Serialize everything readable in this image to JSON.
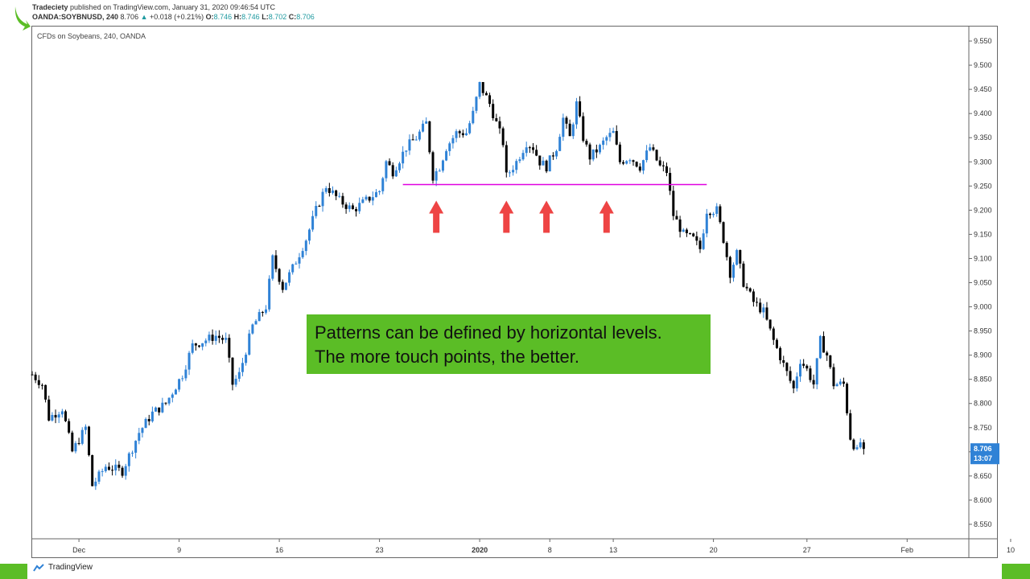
{
  "header": {
    "publisher": "Tradeciety",
    "published_text": "published on TradingView.com, January 31, 2020 09:46:54 UTC",
    "symbol": "OANDA:SOYBNUSD, 240",
    "last": "8.706",
    "change": "+0.018 (+0.21%)",
    "o_label": "O:",
    "o_value": "8.746",
    "h_label": "H:",
    "h_value": "8.746",
    "l_label": "L:",
    "l_value": "8.702",
    "c_label": "C:",
    "c_value": "8.706"
  },
  "chart_subtitle": "CFDs on Soybeans, 240, OANDA",
  "callout": {
    "line1": "Patterns can be defined by horizontal levels.",
    "line2": "The more touch points, the better."
  },
  "footer": {
    "brand": "TradingView"
  },
  "colors": {
    "up": "#2f82d6",
    "down": "#000000",
    "level": "#e000e0",
    "arrow": "#ee4444",
    "callout": "#5bbd26",
    "price_tag": "#2f82d6"
  },
  "chart_data": {
    "type": "candlestick",
    "title": "CFDs on Soybeans, 240, OANDA",
    "ylim": [
      8.52,
      9.58
    ],
    "y_ticks": [
      "9.550",
      "9.500",
      "9.450",
      "9.400",
      "9.350",
      "9.300",
      "9.250",
      "9.200",
      "9.150",
      "9.100",
      "9.050",
      "9.000",
      "8.950",
      "8.900",
      "8.850",
      "8.800",
      "8.750",
      "8.700",
      "8.650",
      "8.600",
      "8.550"
    ],
    "x_ticks": [
      {
        "label": "Dec",
        "bar": 14
      },
      {
        "label": "9",
        "bar": 44
      },
      {
        "label": "16",
        "bar": 74
      },
      {
        "label": "23",
        "bar": 104
      },
      {
        "label": "2020",
        "bar": 134
      },
      {
        "label": "8",
        "bar": 155
      },
      {
        "label": "13",
        "bar": 174
      },
      {
        "label": "20",
        "bar": 204
      },
      {
        "label": "27",
        "bar": 232
      },
      {
        "label": "Feb",
        "bar": 262
      },
      {
        "label": "10",
        "bar": 293
      }
    ],
    "bar_count": 300,
    "horizontal_level": {
      "price": 9.253,
      "from_bar": 111,
      "to_bar": 202
    },
    "touch_arrows_bars": [
      121,
      142,
      154,
      172
    ],
    "last_price_tag": {
      "price": "8.706",
      "time": "13:07"
    },
    "waypoints": [
      [
        0,
        8.86
      ],
      [
        3,
        8.84
      ],
      [
        5,
        8.77
      ],
      [
        9,
        8.79
      ],
      [
        12,
        8.7
      ],
      [
        16,
        8.75
      ],
      [
        18,
        8.63
      ],
      [
        22,
        8.67
      ],
      [
        27,
        8.66
      ],
      [
        32,
        8.74
      ],
      [
        36,
        8.78
      ],
      [
        40,
        8.8
      ],
      [
        45,
        8.86
      ],
      [
        48,
        8.92
      ],
      [
        55,
        8.94
      ],
      [
        58,
        8.93
      ],
      [
        60,
        8.84
      ],
      [
        62,
        8.86
      ],
      [
        66,
        8.96
      ],
      [
        70,
        9.0
      ],
      [
        72,
        9.1
      ],
      [
        75,
        9.04
      ],
      [
        78,
        9.08
      ],
      [
        82,
        9.14
      ],
      [
        85,
        9.2
      ],
      [
        88,
        9.25
      ],
      [
        92,
        9.22
      ],
      [
        96,
        9.2
      ],
      [
        100,
        9.22
      ],
      [
        104,
        9.24
      ],
      [
        106,
        9.3
      ],
      [
        108,
        9.28
      ],
      [
        112,
        9.33
      ],
      [
        115,
        9.35
      ],
      [
        118,
        9.38
      ],
      [
        120,
        9.27
      ],
      [
        122,
        9.29
      ],
      [
        124,
        9.33
      ],
      [
        127,
        9.36
      ],
      [
        130,
        9.36
      ],
      [
        132,
        9.4
      ],
      [
        134,
        9.46
      ],
      [
        137,
        9.42
      ],
      [
        139,
        9.38
      ],
      [
        141,
        9.34
      ],
      [
        142,
        9.27
      ],
      [
        145,
        9.3
      ],
      [
        148,
        9.34
      ],
      [
        150,
        9.33
      ],
      [
        152,
        9.3
      ],
      [
        154,
        9.29
      ],
      [
        157,
        9.33
      ],
      [
        159,
        9.39
      ],
      [
        161,
        9.35
      ],
      [
        163,
        9.42
      ],
      [
        165,
        9.35
      ],
      [
        167,
        9.31
      ],
      [
        170,
        9.33
      ],
      [
        172,
        9.35
      ],
      [
        174,
        9.36
      ],
      [
        176,
        9.3
      ],
      [
        179,
        9.31
      ],
      [
        182,
        9.29
      ],
      [
        185,
        9.33
      ],
      [
        188,
        9.29
      ],
      [
        190,
        9.28
      ],
      [
        192,
        9.19
      ],
      [
        195,
        9.15
      ],
      [
        198,
        9.14
      ],
      [
        200,
        9.12
      ],
      [
        202,
        9.2
      ],
      [
        205,
        9.2
      ],
      [
        207,
        9.14
      ],
      [
        209,
        9.07
      ],
      [
        211,
        9.11
      ],
      [
        213,
        9.05
      ],
      [
        216,
        9.01
      ],
      [
        219,
        8.99
      ],
      [
        222,
        8.93
      ],
      [
        225,
        8.88
      ],
      [
        228,
        8.83
      ],
      [
        230,
        8.89
      ],
      [
        232,
        8.87
      ],
      [
        234,
        8.84
      ],
      [
        236,
        8.93
      ],
      [
        238,
        8.9
      ],
      [
        240,
        8.84
      ],
      [
        243,
        8.84
      ],
      [
        245,
        8.73
      ],
      [
        247,
        8.7
      ],
      [
        248,
        8.72
      ],
      [
        249,
        8.706
      ]
    ]
  }
}
